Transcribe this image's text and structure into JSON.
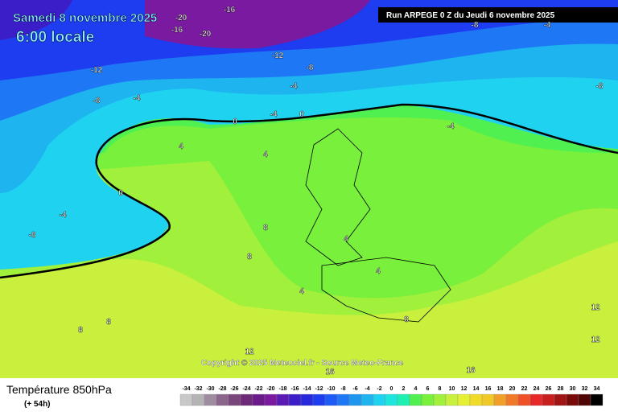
{
  "header": {
    "date": "Samedi 8 novembre 2025",
    "time": "6:00 locale",
    "run": "Run ARPEGE 0 Z du Jeudi 6 novembre 2025"
  },
  "copyright": "Copyright © 2025 Meteociel.fr - Source Meteo-France",
  "footer": {
    "title": "Température 850hPa",
    "lead": "(+ 54h)"
  },
  "legend": {
    "values": [
      -34,
      -32,
      -30,
      -28,
      -26,
      -24,
      -22,
      -20,
      -18,
      -16,
      -14,
      -12,
      -10,
      -8,
      -6,
      -4,
      -2,
      0,
      2,
      4,
      6,
      8,
      10,
      12,
      14,
      16,
      18,
      20,
      22,
      24,
      26,
      28,
      30,
      32,
      34
    ],
    "colors": [
      "#c8c8c8",
      "#b4b4b4",
      "#a08ca0",
      "#8c648c",
      "#78467a",
      "#6e2a78",
      "#6a1a8a",
      "#7a1aa0",
      "#5a1ab4",
      "#3c1ec8",
      "#2828dc",
      "#1e3cf0",
      "#1e5af5",
      "#1e78f5",
      "#1e96f0",
      "#1eb4f0",
      "#1ed2f0",
      "#1ee6dc",
      "#1ef0b4",
      "#50f050",
      "#78f03c",
      "#a0f03c",
      "#c8f03c",
      "#e6f032",
      "#f0dc28",
      "#f0c828",
      "#f0a028",
      "#f07828",
      "#f05028",
      "#e62828",
      "#c81e1e",
      "#a01414",
      "#780a0a",
      "#500505",
      "#000000"
    ]
  },
  "contour_labels": [
    -20,
    -16,
    -16,
    -20,
    -12,
    -8,
    -4,
    -12,
    -8,
    -4,
    0,
    -4,
    0,
    4,
    4,
    0,
    -4,
    -8,
    8,
    8,
    12,
    4,
    4,
    4,
    8,
    8,
    8,
    12,
    16,
    16,
    -8,
    -4,
    -8,
    -4,
    12
  ]
}
